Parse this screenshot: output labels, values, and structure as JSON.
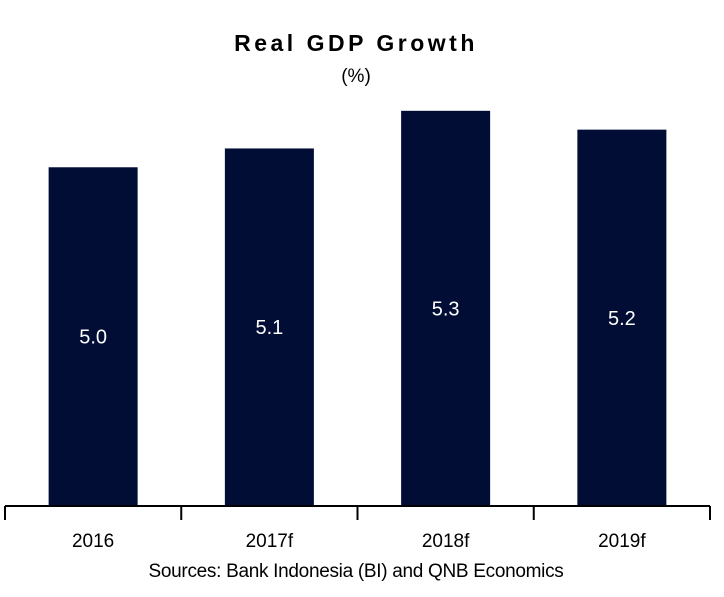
{
  "chart_data": {
    "type": "bar",
    "title": "Real GDP Growth",
    "subtitle": "(%)",
    "categories": [
      "2016",
      "2017f",
      "2018f",
      "2019f"
    ],
    "values": [
      5.0,
      5.1,
      5.3,
      5.2
    ],
    "value_labels": [
      "5.0",
      "5.1",
      "5.3",
      "5.2"
    ],
    "xlabel": "",
    "ylabel": "",
    "ylim": [
      3.2,
      5.4
    ],
    "grid": false,
    "legend": "none",
    "source": "Sources: Bank Indonesia (BI) and QNB Economics"
  },
  "colors": {
    "bar": "#020d35",
    "axis": "#000000",
    "label": "#ffffff"
  }
}
